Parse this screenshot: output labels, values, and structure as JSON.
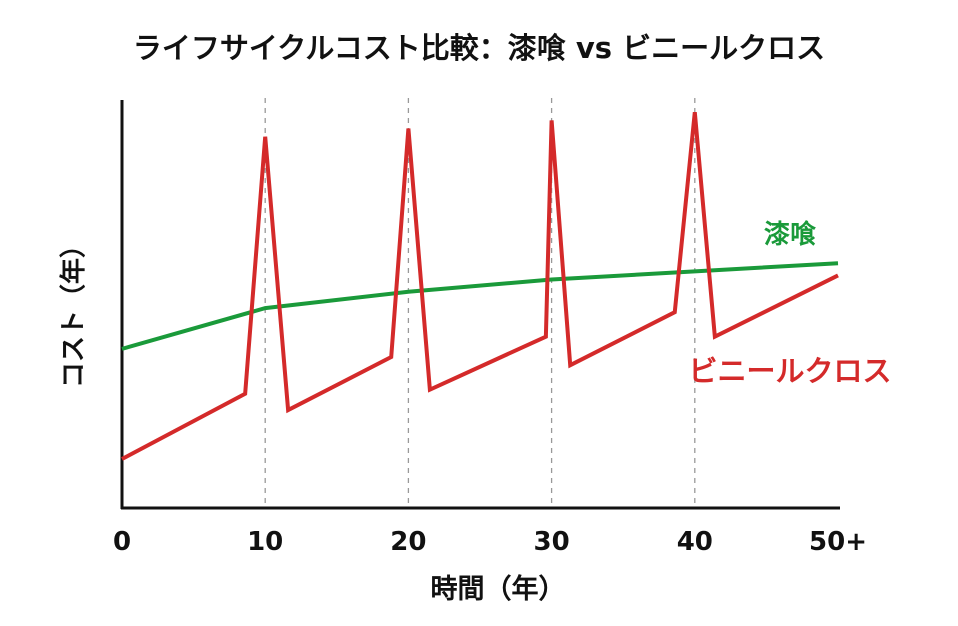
{
  "chart_data": {
    "type": "line",
    "title": "ライフサイクルコスト比較：漆喰 vs ビニールクロス",
    "xlabel": "時間（年）",
    "ylabel": "コスト（年）",
    "xlim": [
      0,
      50
    ],
    "ylim": [
      0,
      100
    ],
    "x_ticks": [
      "0",
      "10",
      "20",
      "30",
      "40",
      "50+"
    ],
    "x_tick_values": [
      0,
      10,
      20,
      30,
      40,
      50
    ],
    "y_ticks": [],
    "grid": false,
    "reference_lines_x": [
      10,
      20,
      30,
      40
    ],
    "series": [
      {
        "name": "漆喰",
        "color": "#1a9a3a",
        "points": [
          [
            0,
            39
          ],
          [
            10,
            49
          ],
          [
            20,
            53
          ],
          [
            30,
            56
          ],
          [
            40,
            58
          ],
          [
            50,
            60
          ]
        ]
      },
      {
        "name": "ビニールクロス",
        "color": "#d42a2a",
        "points": [
          [
            0,
            12
          ],
          [
            8.6,
            28
          ],
          [
            10,
            91
          ],
          [
            11.6,
            24
          ],
          [
            18.8,
            37
          ],
          [
            20,
            93
          ],
          [
            21.5,
            29
          ],
          [
            29.6,
            42
          ],
          [
            30,
            95
          ],
          [
            31.3,
            35
          ],
          [
            38.6,
            48
          ],
          [
            40,
            97
          ],
          [
            41.4,
            42
          ],
          [
            50,
            57
          ]
        ]
      }
    ]
  }
}
